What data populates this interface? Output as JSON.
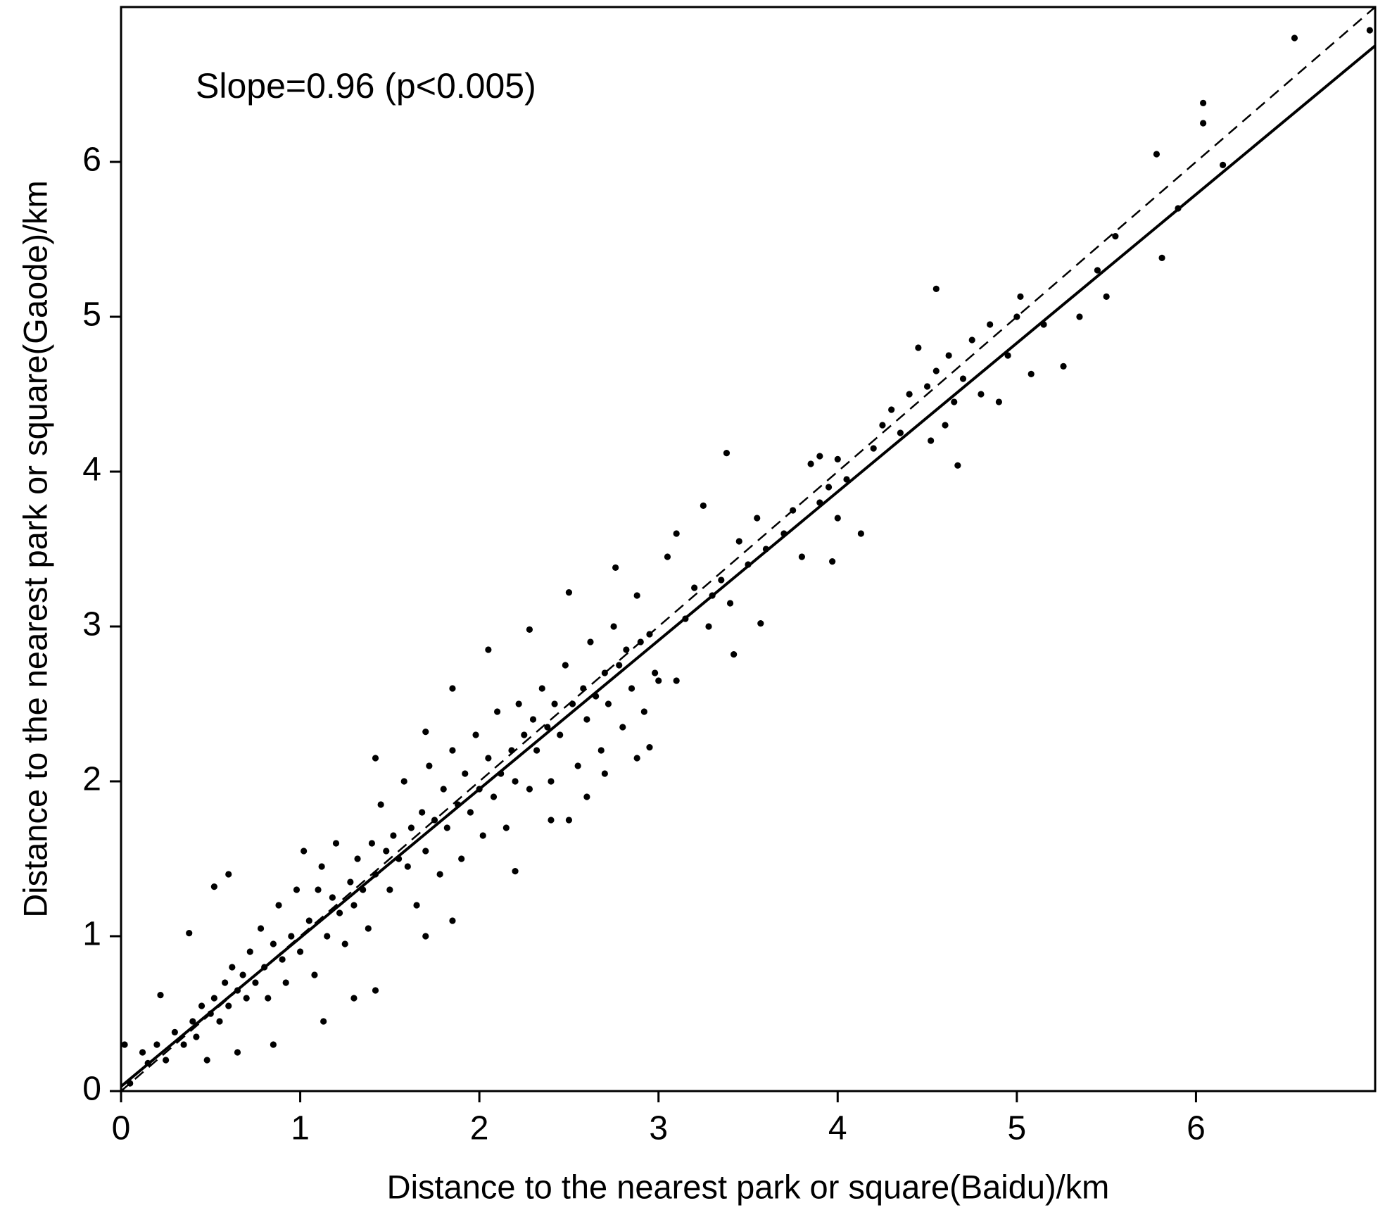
{
  "chart_data": {
    "type": "scatter",
    "annotation": "Slope=0.96 (p<0.005)",
    "xlabel": "Distance to the nearest park or square(Baidu)/km",
    "ylabel": "Distance to the nearest park or square(Gaode)/km",
    "xlim": [
      0,
      7
    ],
    "ylim": [
      0,
      7
    ],
    "xticks": [
      0,
      1,
      2,
      3,
      4,
      5,
      6
    ],
    "yticks": [
      0,
      1,
      2,
      3,
      4,
      5,
      6
    ],
    "color": "#000000",
    "x": [
      0.02,
      0.05,
      0.12,
      0.22,
      0.38,
      0.52,
      0.6,
      0.48,
      0.65,
      0.85,
      1.13,
      1.42,
      1.3,
      1.42,
      1.7,
      1.85,
      2.05,
      2.5,
      2.28,
      2.76,
      3.05,
      3.1,
      3.25,
      3.38,
      3.42,
      3.57,
      3.9,
      4.0,
      3.97,
      4.13,
      4.55,
      4.67,
      4.9,
      5.02,
      5.08,
      5.26,
      5.55,
      5.5,
      5.78,
      5.81,
      6.04,
      6.04,
      6.15,
      6.55,
      6.97,
      2.95,
      2.88,
      2.5,
      2.2,
      1.7,
      1.85,
      2.4,
      3.0,
      3.1,
      2.7,
      2.6,
      0.15,
      0.2,
      0.25,
      0.3,
      0.35,
      0.4,
      0.42,
      0.45,
      0.5,
      0.52,
      0.55,
      0.58,
      0.6,
      0.62,
      0.65,
      0.68,
      0.7,
      0.72,
      0.75,
      0.78,
      0.8,
      0.82,
      0.85,
      0.88,
      0.9,
      0.92,
      0.95,
      0.98,
      1.0,
      1.02,
      1.05,
      1.08,
      1.1,
      1.12,
      1.15,
      1.18,
      1.2,
      1.22,
      1.25,
      1.28,
      1.3,
      1.32,
      1.35,
      1.38,
      1.4,
      1.42,
      1.45,
      1.48,
      1.5,
      1.52,
      1.55,
      1.58,
      1.6,
      1.62,
      1.65,
      1.68,
      1.7,
      1.72,
      1.75,
      1.78,
      1.8,
      1.82,
      1.85,
      1.88,
      1.9,
      1.92,
      1.95,
      1.98,
      2.0,
      2.02,
      2.05,
      2.08,
      2.1,
      2.12,
      2.15,
      2.18,
      2.2,
      2.22,
      2.25,
      2.28,
      2.3,
      2.32,
      2.35,
      2.38,
      2.4,
      2.42,
      2.45,
      2.48,
      2.52,
      2.55,
      2.58,
      2.6,
      2.62,
      2.65,
      2.68,
      2.7,
      2.72,
      2.75,
      2.78,
      2.8,
      2.82,
      2.85,
      2.88,
      2.9,
      2.92,
      2.95,
      2.98,
      3.15,
      3.2,
      3.28,
      3.3,
      3.35,
      3.4,
      3.45,
      3.5,
      3.55,
      3.6,
      3.7,
      3.75,
      3.8,
      3.85,
      3.9,
      3.95,
      4.0,
      4.05,
      4.2,
      4.25,
      4.3,
      4.35,
      4.4,
      4.45,
      4.5,
      4.52,
      4.55,
      4.6,
      4.62,
      4.65,
      4.7,
      4.75,
      4.8,
      4.85,
      4.95,
      5.0,
      5.15,
      5.35,
      5.45,
      5.9
    ],
    "values": [
      0.3,
      0.05,
      0.25,
      0.62,
      1.02,
      1.32,
      1.4,
      0.2,
      0.25,
      0.3,
      0.45,
      0.65,
      0.6,
      2.15,
      2.32,
      2.6,
      2.85,
      3.22,
      2.98,
      3.38,
      3.45,
      3.6,
      3.78,
      4.12,
      2.82,
      3.02,
      4.1,
      4.08,
      3.42,
      3.6,
      5.18,
      4.04,
      4.45,
      5.13,
      4.63,
      4.68,
      5.52,
      5.13,
      6.05,
      5.38,
      6.38,
      6.25,
      5.98,
      6.8,
      6.85,
      2.22,
      2.15,
      1.75,
      1.42,
      1.0,
      1.1,
      1.75,
      2.65,
      2.65,
      2.05,
      1.9,
      0.18,
      0.3,
      0.2,
      0.38,
      0.3,
      0.45,
      0.35,
      0.55,
      0.5,
      0.6,
      0.45,
      0.7,
      0.55,
      0.8,
      0.65,
      0.75,
      0.6,
      0.9,
      0.7,
      1.05,
      0.8,
      0.6,
      0.95,
      1.2,
      0.85,
      0.7,
      1.0,
      1.3,
      0.9,
      1.55,
      1.1,
      0.75,
      1.3,
      1.45,
      1.0,
      1.25,
      1.6,
      1.15,
      0.95,
      1.35,
      1.2,
      1.5,
      1.3,
      1.05,
      1.6,
      1.4,
      1.85,
      1.55,
      1.3,
      1.65,
      1.5,
      2.0,
      1.45,
      1.7,
      1.2,
      1.8,
      1.55,
      2.1,
      1.75,
      1.4,
      1.95,
      1.7,
      2.2,
      1.85,
      1.5,
      2.05,
      1.8,
      2.3,
      1.95,
      1.65,
      2.15,
      1.9,
      2.45,
      2.05,
      1.7,
      2.2,
      2.0,
      2.5,
      2.3,
      1.95,
      2.4,
      2.2,
      2.6,
      2.35,
      2.0,
      2.5,
      2.3,
      2.75,
      2.5,
      2.1,
      2.6,
      2.4,
      2.9,
      2.55,
      2.2,
      2.7,
      2.5,
      3.0,
      2.75,
      2.35,
      2.85,
      2.6,
      3.2,
      2.9,
      2.45,
      2.95,
      2.7,
      3.05,
      3.25,
      3.0,
      3.2,
      3.3,
      3.15,
      3.55,
      3.4,
      3.7,
      3.5,
      3.6,
      3.75,
      3.45,
      4.05,
      3.8,
      3.9,
      3.7,
      3.95,
      4.15,
      4.3,
      4.4,
      4.25,
      4.5,
      4.8,
      4.55,
      4.2,
      4.65,
      4.3,
      4.75,
      4.45,
      4.6,
      4.85,
      4.5,
      4.95,
      4.75,
      5.0,
      4.95,
      5.0,
      5.3,
      5.7
    ],
    "lines": [
      {
        "style": "solid",
        "x": [
          0,
          7
        ],
        "values": [
          0.03,
          6.75
        ]
      },
      {
        "style": "dashed",
        "x": [
          0,
          7
        ],
        "values": [
          0,
          7
        ]
      }
    ]
  }
}
